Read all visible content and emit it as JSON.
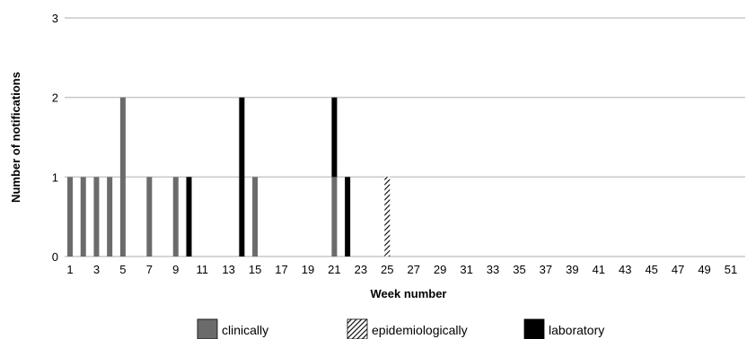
{
  "chart_data": {
    "type": "bar",
    "stacked": true,
    "xlabel": "Week number",
    "ylabel": "Number of notifications",
    "ylim": [
      0,
      3
    ],
    "yticks": [
      0,
      1,
      2,
      3
    ],
    "x": [
      1,
      2,
      3,
      4,
      5,
      6,
      7,
      8,
      9,
      10,
      11,
      12,
      13,
      14,
      15,
      16,
      17,
      18,
      19,
      20,
      21,
      22,
      23,
      24,
      25,
      26,
      27,
      28,
      29,
      30,
      31,
      32,
      33,
      34,
      35,
      36,
      37,
      38,
      39,
      40,
      41,
      42,
      43,
      44,
      45,
      46,
      47,
      48,
      49,
      50,
      51,
      52
    ],
    "xtick_labels": [
      "1",
      "3",
      "5",
      "7",
      "9",
      "11",
      "13",
      "15",
      "17",
      "19",
      "21",
      "23",
      "25",
      "27",
      "29",
      "31",
      "33",
      "35",
      "37",
      "39",
      "41",
      "43",
      "45",
      "47",
      "49",
      "51"
    ],
    "grid": "horizontal",
    "legend_position": "bottom",
    "colors": {
      "clinically": "#6b6b6b",
      "epidemiologically": "hatched",
      "laboratory": "#000000",
      "grid": "#c8c8c8"
    },
    "series": [
      {
        "name": "clinically",
        "values": [
          1,
          1,
          1,
          1,
          2,
          0,
          1,
          0,
          1,
          0,
          0,
          0,
          0,
          0,
          1,
          0,
          0,
          0,
          0,
          0,
          1,
          0,
          0,
          0,
          0,
          0,
          0,
          0,
          0,
          0,
          0,
          0,
          0,
          0,
          0,
          0,
          0,
          0,
          0,
          0,
          0,
          0,
          0,
          0,
          0,
          0,
          0,
          0,
          0,
          0,
          0,
          0
        ]
      },
      {
        "name": "epidemiologically",
        "values": [
          0,
          0,
          0,
          0,
          0,
          0,
          0,
          0,
          0,
          0,
          0,
          0,
          0,
          0,
          0,
          0,
          0,
          0,
          0,
          0,
          0,
          0,
          0,
          0,
          1,
          0,
          0,
          0,
          0,
          0,
          0,
          0,
          0,
          0,
          0,
          0,
          0,
          0,
          0,
          0,
          0,
          0,
          0,
          0,
          0,
          0,
          0,
          0,
          0,
          0,
          0,
          0
        ]
      },
      {
        "name": "laboratory",
        "values": [
          0,
          0,
          0,
          0,
          0,
          0,
          0,
          0,
          0,
          1,
          0,
          0,
          0,
          2,
          0,
          0,
          0,
          0,
          0,
          0,
          1,
          1,
          0,
          0,
          0,
          0,
          0,
          0,
          0,
          0,
          0,
          0,
          0,
          0,
          0,
          0,
          0,
          0,
          0,
          0,
          0,
          0,
          0,
          0,
          0,
          0,
          0,
          0,
          0,
          0,
          0,
          0
        ]
      }
    ]
  }
}
